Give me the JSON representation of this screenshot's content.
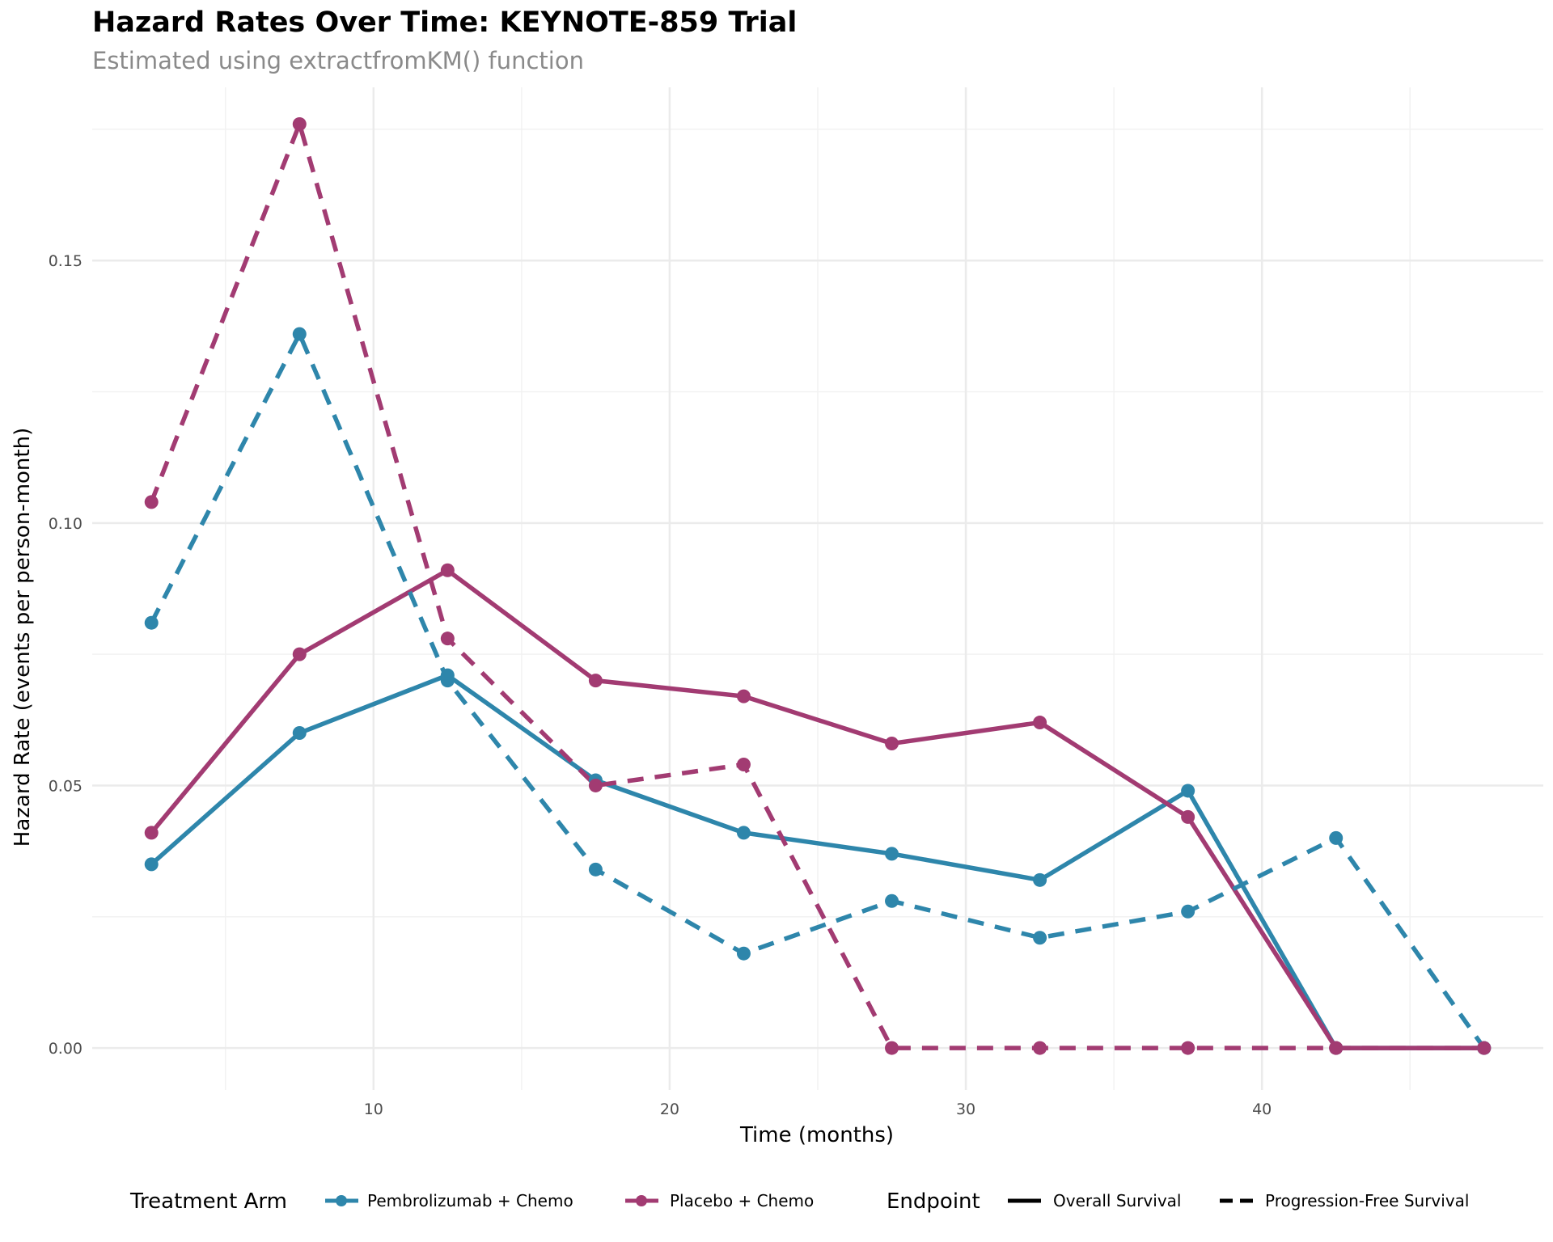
{
  "chart_data": {
    "type": "line",
    "title": "Hazard Rates Over Time: KEYNOTE-859 Trial",
    "subtitle": "Estimated using extractfromKM() function",
    "xlabel": "Time (months)",
    "ylabel": "Hazard Rate (events per person-month)",
    "xlim": [
      0.5,
      49.5
    ],
    "ylim": [
      -0.008,
      0.183
    ],
    "x_ticks": [
      10,
      20,
      30,
      40
    ],
    "x_tick_labels": [
      "10",
      "20",
      "30",
      "40"
    ],
    "y_ticks": [
      0.0,
      0.05,
      0.1,
      0.15
    ],
    "y_tick_labels": [
      "0.00",
      "0.05",
      "0.10",
      "0.15"
    ],
    "grid": true,
    "legend_position": "bottom",
    "legend": {
      "arm_title": "Treatment Arm",
      "arms": [
        {
          "name": "Pembrolizumab + Chemo",
          "color": "#2E86AB"
        },
        {
          "name": "Placebo + Chemo",
          "color": "#A23B72"
        }
      ],
      "endpoint_title": "Endpoint",
      "endpoints": [
        {
          "name": "Overall Survival",
          "linetype": "solid"
        },
        {
          "name": "Progression-Free Survival",
          "linetype": "dashed"
        }
      ]
    },
    "x": [
      2.5,
      7.5,
      12.5,
      17.5,
      22.5,
      27.5,
      32.5,
      37.5,
      42.5,
      47.5
    ],
    "series": [
      {
        "arm": "Pembrolizumab + Chemo",
        "endpoint": "Overall Survival",
        "color": "#2E86AB",
        "linetype": "solid",
        "values": [
          0.035,
          0.06,
          0.071,
          0.051,
          0.041,
          0.037,
          0.032,
          0.049,
          0.0,
          0.0
        ]
      },
      {
        "arm": "Placebo + Chemo",
        "endpoint": "Overall Survival",
        "color": "#A23B72",
        "linetype": "solid",
        "values": [
          0.041,
          0.075,
          0.091,
          0.07,
          0.067,
          0.058,
          0.062,
          0.044,
          0.0,
          0.0
        ]
      },
      {
        "arm": "Pembrolizumab + Chemo",
        "endpoint": "Progression-Free Survival",
        "color": "#2E86AB",
        "linetype": "dashed",
        "values": [
          0.081,
          0.136,
          0.07,
          0.034,
          0.018,
          0.028,
          0.021,
          0.026,
          0.04,
          0.0
        ]
      },
      {
        "arm": "Placebo + Chemo",
        "endpoint": "Progression-Free Survival",
        "color": "#A23B72",
        "linetype": "dashed",
        "values": [
          0.104,
          0.176,
          0.078,
          0.05,
          0.054,
          0.0,
          0.0,
          0.0,
          0.0,
          0.0
        ]
      }
    ]
  }
}
